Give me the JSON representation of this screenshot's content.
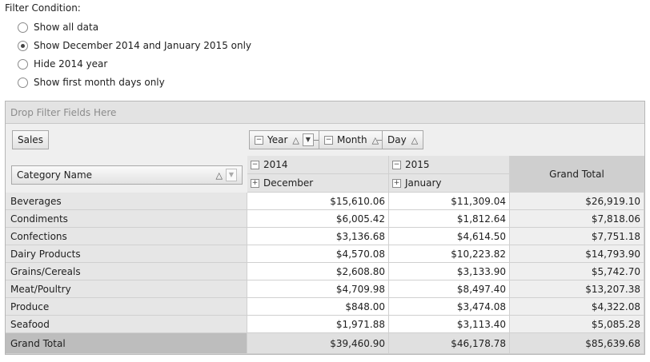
{
  "filter": {
    "title": "Filter Condition:",
    "options": [
      {
        "label": "Show all data",
        "checked": false
      },
      {
        "label": "Show December 2014 and January 2015 only",
        "checked": true
      },
      {
        "label": "Hide 2014 year",
        "checked": false
      },
      {
        "label": "Show first month days only",
        "checked": false
      }
    ]
  },
  "pivot": {
    "drop_zone": "Drop Filter Fields Here",
    "data_field": "Sales",
    "column_fields": [
      "Year",
      "Month",
      "Day"
    ],
    "row_field": "Category Name",
    "years": [
      "2014",
      "2015"
    ],
    "months": [
      "December",
      "January"
    ],
    "grand_total_label": "Grand Total",
    "rows": [
      {
        "category": "Beverages",
        "dec2014": "$15,610.06",
        "jan2015": "$11,309.04",
        "total": "$26,919.10"
      },
      {
        "category": "Condiments",
        "dec2014": "$6,005.42",
        "jan2015": "$1,812.64",
        "total": "$7,818.06"
      },
      {
        "category": "Confections",
        "dec2014": "$3,136.68",
        "jan2015": "$4,614.50",
        "total": "$7,751.18"
      },
      {
        "category": "Dairy Products",
        "dec2014": "$4,570.08",
        "jan2015": "$10,223.82",
        "total": "$14,793.90"
      },
      {
        "category": "Grains/Cereals",
        "dec2014": "$2,608.80",
        "jan2015": "$3,133.90",
        "total": "$5,742.70"
      },
      {
        "category": "Meat/Poultry",
        "dec2014": "$4,709.98",
        "jan2015": "$8,497.40",
        "total": "$13,207.38"
      },
      {
        "category": "Produce",
        "dec2014": "$848.00",
        "jan2015": "$3,474.08",
        "total": "$4,322.08"
      },
      {
        "category": "Seafood",
        "dec2014": "$1,971.88",
        "jan2015": "$3,113.40",
        "total": "$5,085.28"
      }
    ],
    "grand_totals": {
      "dec2014": "$39,460.90",
      "jan2015": "$46,178.78",
      "total": "$85,639.68"
    }
  }
}
